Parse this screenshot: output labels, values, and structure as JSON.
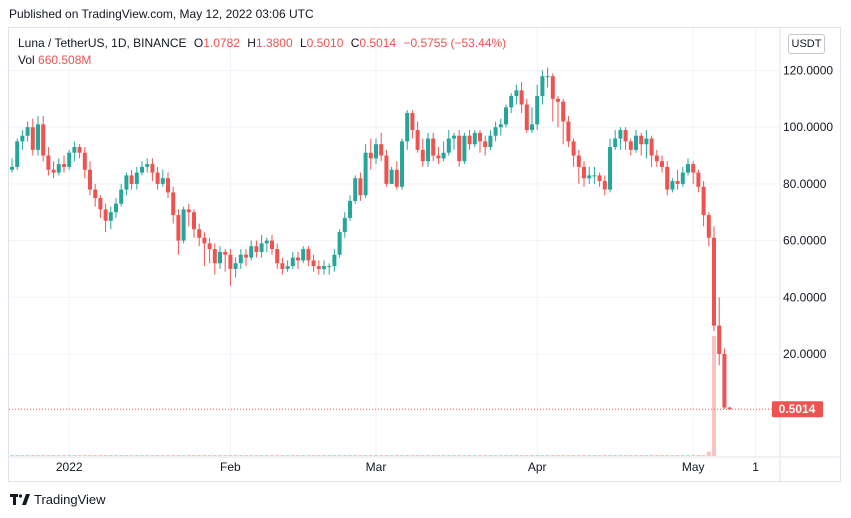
{
  "header": {
    "published": "Published on TradingView.com, May 12, 2022 03:06 UTC"
  },
  "legend": {
    "symbol": "Luna / TetherUS, 1D, BINANCE",
    "o_label": "O",
    "o": "1.0782",
    "h_label": "H",
    "h": "1.3800",
    "l_label": "L",
    "l": "0.5010",
    "c_label": "C",
    "c": "0.5014",
    "change": "−0.5755 (−53.44%)",
    "vol_label": "Vol",
    "vol": "660.508M"
  },
  "currency_button": "USDT",
  "footer": {
    "brand": "TradingView"
  },
  "colors": {
    "up": "#26a69a",
    "down": "#ef5350",
    "grid": "#f0f3fa"
  },
  "chart_data": {
    "type": "candlestick",
    "symbol": "Luna / TetherUS",
    "interval": "1D",
    "exchange": "BINANCE",
    "y_ticks": [
      "20.0000",
      "40.0000",
      "60.0000",
      "80.0000",
      "100.0000",
      "120.0000"
    ],
    "y_range": [
      -16,
      135
    ],
    "x_ticks": [
      {
        "label": "2022",
        "date": "2022-01-01"
      },
      {
        "label": "Feb",
        "date": "2022-02-01"
      },
      {
        "label": "Mar",
        "date": "2022-03-01"
      },
      {
        "label": "Apr",
        "date": "2022-04-01"
      },
      {
        "label": "May",
        "date": "2022-05-01"
      },
      {
        "label": "1",
        "date": "2022-05-13"
      }
    ],
    "last_price_label": "0.5014",
    "last_price": 0.5014,
    "start_date": "2021-12-21",
    "candles": [
      [
        85,
        86,
        89,
        84
      ],
      [
        86,
        95,
        96,
        85
      ],
      [
        95,
        97,
        99,
        92
      ],
      [
        97,
        100,
        102,
        95
      ],
      [
        100,
        92,
        103,
        90
      ],
      [
        92,
        101,
        104,
        90
      ],
      [
        101,
        90,
        104,
        88
      ],
      [
        90,
        85,
        93,
        83
      ],
      [
        85,
        84,
        88,
        82
      ],
      [
        84,
        87,
        89,
        83
      ],
      [
        87,
        86,
        90,
        84
      ],
      [
        86,
        91,
        92,
        85
      ],
      [
        91,
        93,
        95,
        88
      ],
      [
        93,
        91,
        94,
        89
      ],
      [
        91,
        85,
        93,
        82
      ],
      [
        85,
        78,
        88,
        76
      ],
      [
        78,
        75,
        80,
        72
      ],
      [
        75,
        71,
        76,
        68
      ],
      [
        71,
        67,
        73,
        63
      ],
      [
        67,
        70,
        72,
        64
      ],
      [
        70,
        73,
        75,
        68
      ],
      [
        73,
        78,
        80,
        72
      ],
      [
        78,
        83,
        84,
        76
      ],
      [
        83,
        80,
        85,
        78
      ],
      [
        80,
        84,
        86,
        78
      ],
      [
        84,
        86,
        88,
        83
      ],
      [
        86,
        87,
        89,
        84
      ],
      [
        87,
        84,
        89,
        81
      ],
      [
        84,
        80,
        86,
        78
      ],
      [
        80,
        82,
        85,
        79
      ],
      [
        82,
        77,
        84,
        75
      ],
      [
        77,
        69,
        79,
        66
      ],
      [
        69,
        60,
        71,
        55
      ],
      [
        60,
        71,
        72,
        59
      ],
      [
        71,
        70,
        73,
        65
      ],
      [
        70,
        64,
        71,
        61
      ],
      [
        64,
        61,
        66,
        58
      ],
      [
        61,
        59,
        63,
        51
      ],
      [
        59,
        57,
        61,
        52
      ],
      [
        57,
        52,
        59,
        48
      ],
      [
        52,
        56,
        58,
        50
      ],
      [
        56,
        55,
        57,
        49
      ],
      [
        55,
        50,
        57,
        44
      ],
      [
        50,
        52,
        54,
        47
      ],
      [
        52,
        55,
        57,
        50
      ],
      [
        55,
        54,
        57,
        51
      ],
      [
        54,
        58,
        60,
        53
      ],
      [
        58,
        56,
        60,
        54
      ],
      [
        56,
        59,
        62,
        54
      ],
      [
        59,
        60,
        61,
        56
      ],
      [
        60,
        57,
        62,
        55
      ],
      [
        57,
        52,
        59,
        50
      ],
      [
        52,
        50,
        54,
        48
      ],
      [
        50,
        51,
        53,
        49
      ],
      [
        51,
        54,
        56,
        50
      ],
      [
        54,
        53,
        56,
        50
      ],
      [
        53,
        57,
        58,
        52
      ],
      [
        57,
        53,
        58,
        51
      ],
      [
        53,
        51,
        55,
        49
      ],
      [
        51,
        50,
        53,
        48
      ],
      [
        50,
        51,
        53,
        48
      ],
      [
        51,
        51,
        52,
        48
      ],
      [
        51,
        55,
        57,
        49
      ],
      [
        55,
        63,
        64,
        54
      ],
      [
        63,
        68,
        70,
        61
      ],
      [
        68,
        74,
        76,
        67
      ],
      [
        74,
        82,
        83,
        73
      ],
      [
        82,
        76,
        84,
        74
      ],
      [
        76,
        91,
        94,
        75
      ],
      [
        91,
        89,
        96,
        85
      ],
      [
        89,
        94,
        96,
        87
      ],
      [
        94,
        90,
        98,
        88
      ],
      [
        90,
        80,
        92,
        79
      ],
      [
        80,
        85,
        86,
        80
      ],
      [
        85,
        79,
        88,
        78
      ],
      [
        79,
        95,
        96,
        78
      ],
      [
        95,
        105,
        106,
        92
      ],
      [
        105,
        99,
        106,
        96
      ],
      [
        99,
        92,
        102,
        91
      ],
      [
        92,
        88,
        96,
        86
      ],
      [
        88,
        96,
        98,
        86
      ],
      [
        96,
        90,
        98,
        88
      ],
      [
        90,
        89,
        93,
        87
      ],
      [
        89,
        91,
        95,
        88
      ],
      [
        91,
        96,
        99,
        90
      ],
      [
        96,
        97,
        98,
        92
      ],
      [
        97,
        88,
        99,
        86
      ],
      [
        88,
        97,
        98,
        87
      ],
      [
        97,
        94,
        99,
        92
      ],
      [
        94,
        98,
        99,
        93
      ],
      [
        98,
        95,
        99,
        91
      ],
      [
        95,
        93,
        97,
        90
      ],
      [
        93,
        97,
        99,
        92
      ],
      [
        97,
        100,
        102,
        95
      ],
      [
        100,
        101,
        103,
        97
      ],
      [
        101,
        107,
        108,
        100
      ],
      [
        107,
        111,
        112,
        105
      ],
      [
        111,
        113,
        115,
        108
      ],
      [
        113,
        108,
        116,
        105
      ],
      [
        108,
        99,
        110,
        98
      ],
      [
        99,
        101,
        107,
        98
      ],
      [
        101,
        111,
        115,
        99
      ],
      [
        111,
        118,
        120,
        108
      ],
      [
        118,
        118,
        121,
        114
      ],
      [
        118,
        110,
        119,
        102
      ],
      [
        110,
        109,
        111,
        100
      ],
      [
        109,
        102,
        110,
        94
      ],
      [
        102,
        95,
        104,
        93
      ],
      [
        95,
        90,
        96,
        86
      ],
      [
        90,
        86,
        92,
        80
      ],
      [
        86,
        82,
        88,
        79
      ],
      [
        82,
        83,
        86,
        80
      ],
      [
        83,
        83,
        86,
        80
      ],
      [
        83,
        81,
        84,
        79
      ],
      [
        81,
        78,
        83,
        76
      ],
      [
        78,
        93,
        96,
        77
      ],
      [
        93,
        96,
        99,
        92
      ],
      [
        96,
        99,
        100,
        92
      ],
      [
        99,
        95,
        100,
        92
      ],
      [
        95,
        92,
        96,
        90
      ],
      [
        92,
        97,
        99,
        91
      ],
      [
        97,
        94,
        98,
        90
      ],
      [
        94,
        96,
        99,
        89
      ],
      [
        96,
        90,
        97,
        86
      ],
      [
        90,
        88,
        92,
        86
      ],
      [
        88,
        86,
        90,
        84
      ],
      [
        86,
        78,
        88,
        76
      ],
      [
        78,
        81,
        82,
        77
      ],
      [
        81,
        80,
        85,
        78
      ],
      [
        80,
        84,
        86,
        79
      ],
      [
        84,
        87,
        89,
        83
      ],
      [
        87,
        84,
        88,
        80
      ],
      [
        84,
        79,
        85,
        77
      ],
      [
        79,
        69,
        81,
        65
      ],
      [
        69,
        61,
        70,
        58
      ],
      [
        61,
        30,
        65,
        28
      ],
      [
        30,
        20,
        40,
        16
      ],
      [
        20,
        1.08,
        22,
        0.6
      ],
      [
        1.08,
        0.5014,
        1.38,
        0.501
      ]
    ],
    "volumes": [
      0.5,
      0.5,
      0.5,
      0.5,
      0.5,
      0.5,
      0.5,
      0.5,
      0.5,
      0.5,
      0.5,
      0.5,
      0.5,
      0.5,
      0.5,
      0.5,
      0.5,
      0.5,
      0.5,
      0.5,
      0.5,
      0.5,
      0.5,
      0.5,
      0.5,
      0.5,
      0.5,
      0.5,
      0.5,
      0.5,
      0.5,
      0.5,
      0.5,
      0.5,
      0.5,
      0.5,
      0.5,
      0.5,
      0.5,
      0.5,
      0.5,
      0.5,
      0.5,
      0.5,
      0.5,
      0.5,
      0.5,
      0.5,
      0.5,
      0.5,
      0.5,
      0.5,
      0.5,
      0.5,
      0.5,
      0.5,
      0.5,
      0.5,
      0.5,
      0.5,
      0.5,
      0.5,
      0.5,
      0.5,
      0.5,
      0.5,
      0.5,
      0.5,
      0.5,
      0.5,
      0.5,
      0.5,
      0.5,
      0.5,
      0.5,
      0.5,
      0.5,
      0.5,
      0.5,
      0.5,
      0.5,
      0.5,
      0.5,
      0.5,
      0.5,
      0.5,
      0.5,
      0.5,
      0.5,
      0.5,
      0.5,
      0.5,
      0.5,
      0.5,
      0.5,
      0.5,
      0.5,
      0.5,
      0.5,
      0.5,
      0.5,
      0.5,
      0.5,
      0.5,
      0.5,
      0.5,
      0.5,
      0.5,
      0.5,
      0.5,
      0.5,
      0.5,
      0.5,
      0.5,
      0.5,
      0.5,
      0.5,
      0.5,
      0.5,
      0.5,
      0.5,
      0.5,
      0.5,
      0.5,
      0.5,
      0.5,
      0.5,
      0.5,
      0.5,
      0.5,
      0.6,
      0.8,
      1.2,
      2.5,
      25,
      660.508
    ]
  }
}
